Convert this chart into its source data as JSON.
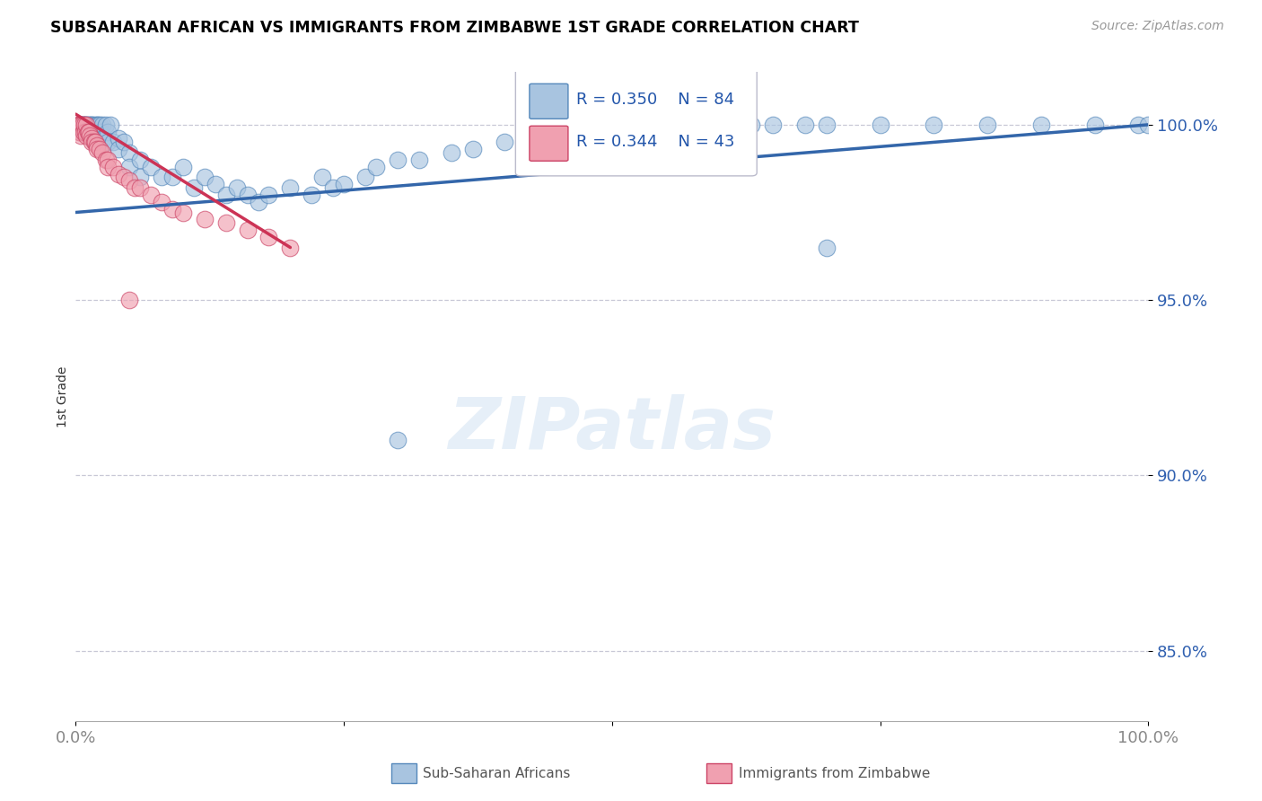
{
  "title": "SUBSAHARAN AFRICAN VS IMMIGRANTS FROM ZIMBABWE 1ST GRADE CORRELATION CHART",
  "source": "Source: ZipAtlas.com",
  "ylabel": "1st Grade",
  "legend_label_blue": "Sub-Saharan Africans",
  "legend_label_pink": "Immigrants from Zimbabwe",
  "r_blue": "R = 0.350",
  "n_blue": "N = 84",
  "r_pink": "R = 0.344",
  "n_pink": "N = 43",
  "xmin": 0.0,
  "xmax": 100.0,
  "ymin": 83.0,
  "ymax": 101.5,
  "yticks": [
    85.0,
    90.0,
    95.0,
    100.0
  ],
  "ytick_labels": [
    "85.0%",
    "90.0%",
    "95.0%",
    "100.0%"
  ],
  "xticks": [
    0.0,
    25.0,
    50.0,
    75.0,
    100.0
  ],
  "xtick_labels": [
    "0.0%",
    "",
    "",
    "",
    "100.0%"
  ],
  "watermark": "ZIPatlas",
  "blue_color": "#A8C4E0",
  "pink_color": "#F0A0B0",
  "blue_edge_color": "#5588BB",
  "pink_edge_color": "#CC4466",
  "blue_line_color": "#3366AA",
  "pink_line_color": "#CC3355",
  "blue_scatter_x": [
    0.3,
    0.4,
    0.5,
    0.5,
    0.6,
    0.7,
    0.8,
    0.9,
    1.0,
    1.0,
    1.1,
    1.2,
    1.3,
    1.4,
    1.5,
    1.5,
    1.6,
    1.7,
    1.8,
    2.0,
    2.0,
    2.1,
    2.2,
    2.3,
    2.5,
    2.6,
    2.8,
    3.0,
    3.0,
    3.2,
    3.5,
    4.0,
    4.0,
    4.5,
    5.0,
    5.0,
    6.0,
    6.0,
    7.0,
    8.0,
    9.0,
    10.0,
    11.0,
    12.0,
    13.0,
    14.0,
    15.0,
    16.0,
    17.0,
    18.0,
    20.0,
    22.0,
    23.0,
    24.0,
    25.0,
    27.0,
    28.0,
    30.0,
    32.0,
    35.0,
    37.0,
    40.0,
    42.0,
    44.0,
    46.0,
    48.0,
    50.0,
    53.0,
    55.0,
    58.0,
    60.0,
    63.0,
    65.0,
    68.0,
    70.0,
    75.0,
    80.0,
    85.0,
    90.0,
    95.0,
    99.0,
    100.0,
    70.0,
    30.0
  ],
  "blue_scatter_y": [
    100.0,
    100.0,
    100.0,
    99.8,
    100.0,
    100.0,
    100.0,
    100.0,
    100.0,
    99.8,
    100.0,
    100.0,
    99.8,
    100.0,
    100.0,
    99.6,
    100.0,
    99.8,
    100.0,
    100.0,
    99.6,
    100.0,
    100.0,
    99.8,
    100.0,
    99.6,
    100.0,
    99.8,
    99.5,
    100.0,
    99.5,
    99.6,
    99.3,
    99.5,
    99.2,
    98.8,
    99.0,
    98.5,
    98.8,
    98.5,
    98.5,
    98.8,
    98.2,
    98.5,
    98.3,
    98.0,
    98.2,
    98.0,
    97.8,
    98.0,
    98.2,
    98.0,
    98.5,
    98.2,
    98.3,
    98.5,
    98.8,
    99.0,
    99.0,
    99.2,
    99.3,
    99.5,
    99.5,
    99.5,
    99.8,
    99.8,
    100.0,
    100.0,
    100.0,
    100.0,
    100.0,
    100.0,
    100.0,
    100.0,
    100.0,
    100.0,
    100.0,
    100.0,
    100.0,
    100.0,
    100.0,
    100.0,
    96.5,
    91.0
  ],
  "pink_scatter_x": [
    0.2,
    0.3,
    0.3,
    0.4,
    0.4,
    0.5,
    0.5,
    0.6,
    0.7,
    0.8,
    0.9,
    1.0,
    1.0,
    1.1,
    1.2,
    1.3,
    1.5,
    1.5,
    1.7,
    1.8,
    2.0,
    2.0,
    2.2,
    2.5,
    2.8,
    3.0,
    3.0,
    3.5,
    4.0,
    4.5,
    5.0,
    5.5,
    6.0,
    7.0,
    8.0,
    9.0,
    10.0,
    12.0,
    14.0,
    16.0,
    18.0,
    20.0,
    5.0
  ],
  "pink_scatter_y": [
    100.0,
    100.0,
    99.8,
    100.0,
    99.8,
    100.0,
    99.7,
    100.0,
    99.8,
    100.0,
    99.8,
    100.0,
    99.7,
    99.8,
    99.8,
    99.7,
    99.6,
    99.5,
    99.5,
    99.5,
    99.4,
    99.3,
    99.3,
    99.2,
    99.0,
    99.0,
    98.8,
    98.8,
    98.6,
    98.5,
    98.4,
    98.2,
    98.2,
    98.0,
    97.8,
    97.6,
    97.5,
    97.3,
    97.2,
    97.0,
    96.8,
    96.5,
    95.0
  ],
  "blue_trend_x": [
    0.0,
    100.0
  ],
  "blue_trend_y": [
    97.5,
    100.0
  ],
  "pink_trend_x": [
    0.0,
    20.0
  ],
  "pink_trend_y": [
    100.3,
    96.5
  ],
  "background_color": "#FFFFFF",
  "grid_color": "#BBBBCC",
  "title_color": "#000000",
  "tick_color_right": "#3060B0",
  "tick_color_bottom": "#888888"
}
